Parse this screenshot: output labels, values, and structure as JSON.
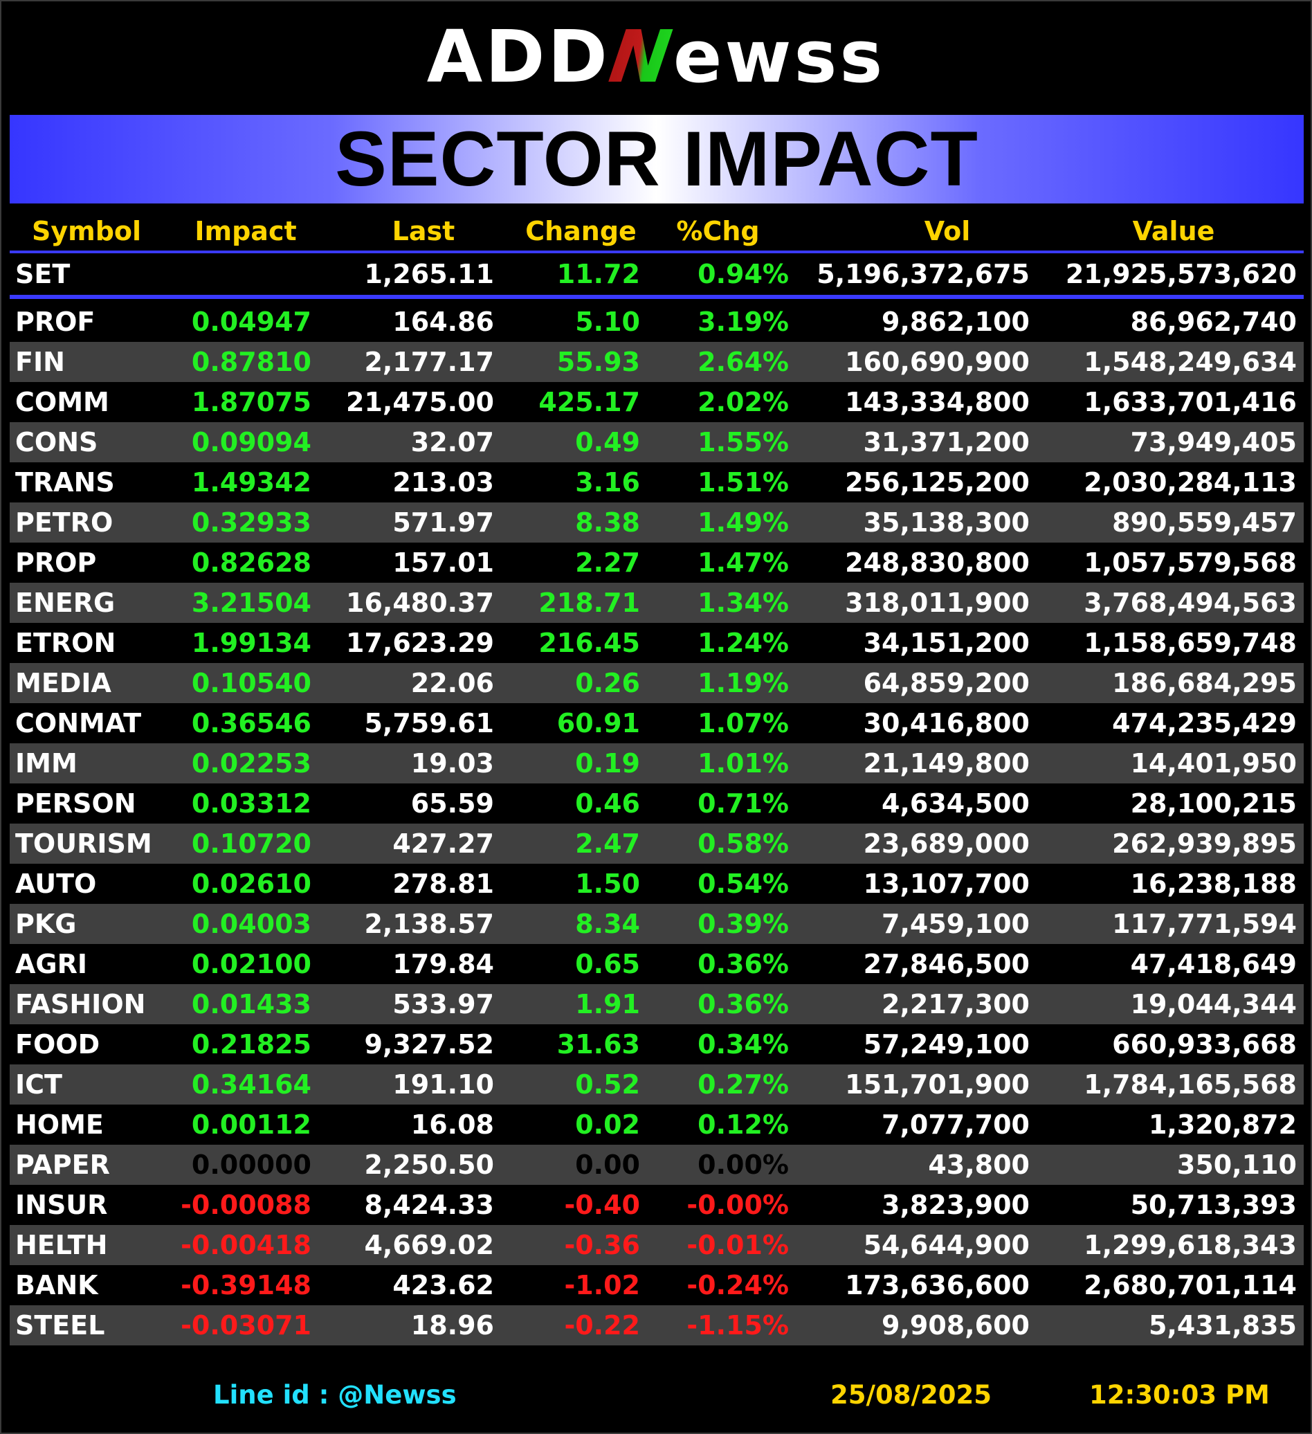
{
  "logo": {
    "part1": "ADD",
    "part2": "N",
    "part3": "ewss"
  },
  "banner": {
    "title": "SECTOR IMPACT"
  },
  "columns": {
    "symbol": "Symbol",
    "impact": "Impact",
    "last": "Last",
    "change": "Change",
    "pct": "%Chg",
    "vol": "Vol",
    "value": "Value"
  },
  "set_row": {
    "symbol": "SET",
    "impact": "",
    "last": "1,265.11",
    "change": "11.72",
    "pct": "0.94%",
    "vol": "5,196,372,675",
    "value": "21,925,573,620"
  },
  "rows": [
    {
      "symbol": "PROF",
      "impact": "0.04947",
      "last": "164.86",
      "change": "5.10",
      "pct": "3.19%",
      "vol": "9,862,100",
      "value": "86,962,740",
      "dir": "pos"
    },
    {
      "symbol": "FIN",
      "impact": "0.87810",
      "last": "2,177.17",
      "change": "55.93",
      "pct": "2.64%",
      "vol": "160,690,900",
      "value": "1,548,249,634",
      "dir": "pos"
    },
    {
      "symbol": "COMM",
      "impact": "1.87075",
      "last": "21,475.00",
      "change": "425.17",
      "pct": "2.02%",
      "vol": "143,334,800",
      "value": "1,633,701,416",
      "dir": "pos"
    },
    {
      "symbol": "CONS",
      "impact": "0.09094",
      "last": "32.07",
      "change": "0.49",
      "pct": "1.55%",
      "vol": "31,371,200",
      "value": "73,949,405",
      "dir": "pos"
    },
    {
      "symbol": "TRANS",
      "impact": "1.49342",
      "last": "213.03",
      "change": "3.16",
      "pct": "1.51%",
      "vol": "256,125,200",
      "value": "2,030,284,113",
      "dir": "pos"
    },
    {
      "symbol": "PETRO",
      "impact": "0.32933",
      "last": "571.97",
      "change": "8.38",
      "pct": "1.49%",
      "vol": "35,138,300",
      "value": "890,559,457",
      "dir": "pos"
    },
    {
      "symbol": "PROP",
      "impact": "0.82628",
      "last": "157.01",
      "change": "2.27",
      "pct": "1.47%",
      "vol": "248,830,800",
      "value": "1,057,579,568",
      "dir": "pos"
    },
    {
      "symbol": "ENERG",
      "impact": "3.21504",
      "last": "16,480.37",
      "change": "218.71",
      "pct": "1.34%",
      "vol": "318,011,900",
      "value": "3,768,494,563",
      "dir": "pos"
    },
    {
      "symbol": "ETRON",
      "impact": "1.99134",
      "last": "17,623.29",
      "change": "216.45",
      "pct": "1.24%",
      "vol": "34,151,200",
      "value": "1,158,659,748",
      "dir": "pos"
    },
    {
      "symbol": "MEDIA",
      "impact": "0.10540",
      "last": "22.06",
      "change": "0.26",
      "pct": "1.19%",
      "vol": "64,859,200",
      "value": "186,684,295",
      "dir": "pos"
    },
    {
      "symbol": "CONMAT",
      "impact": "0.36546",
      "last": "5,759.61",
      "change": "60.91",
      "pct": "1.07%",
      "vol": "30,416,800",
      "value": "474,235,429",
      "dir": "pos"
    },
    {
      "symbol": "IMM",
      "impact": "0.02253",
      "last": "19.03",
      "change": "0.19",
      "pct": "1.01%",
      "vol": "21,149,800",
      "value": "14,401,950",
      "dir": "pos"
    },
    {
      "symbol": "PERSON",
      "impact": "0.03312",
      "last": "65.59",
      "change": "0.46",
      "pct": "0.71%",
      "vol": "4,634,500",
      "value": "28,100,215",
      "dir": "pos"
    },
    {
      "symbol": "TOURISM",
      "impact": "0.10720",
      "last": "427.27",
      "change": "2.47",
      "pct": "0.58%",
      "vol": "23,689,000",
      "value": "262,939,895",
      "dir": "pos"
    },
    {
      "symbol": "AUTO",
      "impact": "0.02610",
      "last": "278.81",
      "change": "1.50",
      "pct": "0.54%",
      "vol": "13,107,700",
      "value": "16,238,188",
      "dir": "pos"
    },
    {
      "symbol": "PKG",
      "impact": "0.04003",
      "last": "2,138.57",
      "change": "8.34",
      "pct": "0.39%",
      "vol": "7,459,100",
      "value": "117,771,594",
      "dir": "pos"
    },
    {
      "symbol": "AGRI",
      "impact": "0.02100",
      "last": "179.84",
      "change": "0.65",
      "pct": "0.36%",
      "vol": "27,846,500",
      "value": "47,418,649",
      "dir": "pos"
    },
    {
      "symbol": "FASHION",
      "impact": "0.01433",
      "last": "533.97",
      "change": "1.91",
      "pct": "0.36%",
      "vol": "2,217,300",
      "value": "19,044,344",
      "dir": "pos"
    },
    {
      "symbol": "FOOD",
      "impact": "0.21825",
      "last": "9,327.52",
      "change": "31.63",
      "pct": "0.34%",
      "vol": "57,249,100",
      "value": "660,933,668",
      "dir": "pos"
    },
    {
      "symbol": "ICT",
      "impact": "0.34164",
      "last": "191.10",
      "change": "0.52",
      "pct": "0.27%",
      "vol": "151,701,900",
      "value": "1,784,165,568",
      "dir": "pos"
    },
    {
      "symbol": "HOME",
      "impact": "0.00112",
      "last": "16.08",
      "change": "0.02",
      "pct": "0.12%",
      "vol": "7,077,700",
      "value": "1,320,872",
      "dir": "pos"
    },
    {
      "symbol": "PAPER",
      "impact": "0.00000",
      "last": "2,250.50",
      "change": "0.00",
      "pct": "0.00%",
      "vol": "43,800",
      "value": "350,110",
      "dir": "zero"
    },
    {
      "symbol": "INSUR",
      "impact": "-0.00088",
      "last": "8,424.33",
      "change": "-0.40",
      "pct": "-0.00%",
      "vol": "3,823,900",
      "value": "50,713,393",
      "dir": "neg"
    },
    {
      "symbol": "HELTH",
      "impact": "-0.00418",
      "last": "4,669.02",
      "change": "-0.36",
      "pct": "-0.01%",
      "vol": "54,644,900",
      "value": "1,299,618,343",
      "dir": "neg"
    },
    {
      "symbol": "BANK",
      "impact": "-0.39148",
      "last": "423.62",
      "change": "-1.02",
      "pct": "-0.24%",
      "vol": "173,636,600",
      "value": "2,680,701,114",
      "dir": "neg"
    },
    {
      "symbol": "STEEL",
      "impact": "-0.03071",
      "last": "18.96",
      "change": "-0.22",
      "pct": "-1.15%",
      "vol": "9,908,600",
      "value": "5,431,835",
      "dir": "neg"
    }
  ],
  "footer": {
    "line_id": "Line id  : @Newss",
    "date": "25/08/2025",
    "time": "12:30:03 PM"
  },
  "colors": {
    "positive": "#22f022",
    "negative": "#ff1a1a",
    "header": "#ffd400",
    "banner": "#3636ff",
    "line_id": "#22e0ff"
  }
}
